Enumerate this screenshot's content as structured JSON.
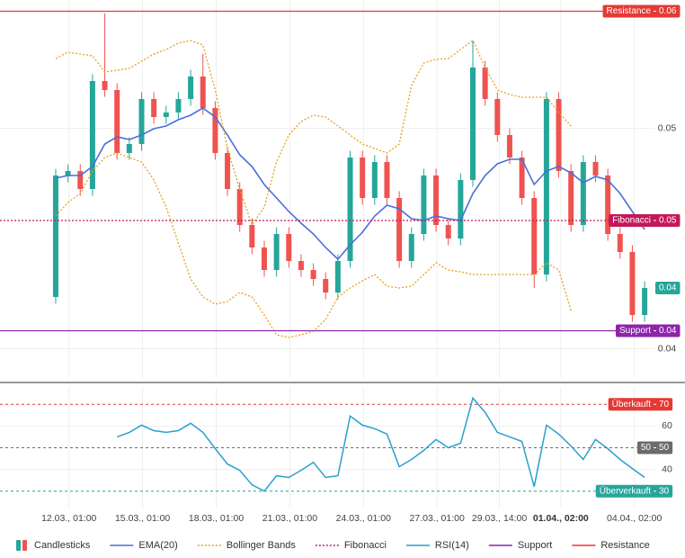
{
  "chart_data": [
    {
      "type": "candlestick",
      "name": "Candlesticks",
      "up_color": "#26a69a",
      "down_color": "#ef5350",
      "open": [
        0.0428,
        0.0482,
        0.0484,
        0.0476,
        0.0524,
        0.052,
        0.0492,
        0.0496,
        0.0516,
        0.0508,
        0.051,
        0.0516,
        0.0526,
        0.0512,
        0.0492,
        0.0476,
        0.046,
        0.045,
        0.044,
        0.0456,
        0.0444,
        0.044,
        0.0436,
        0.043,
        0.0444,
        0.049,
        0.0472,
        0.0488,
        0.0472,
        0.0444,
        0.0456,
        0.0482,
        0.046,
        0.0454,
        0.048,
        0.053,
        0.0516,
        0.05,
        0.049,
        0.0472,
        0.0438,
        0.0516,
        0.0484,
        0.046,
        0.0488,
        0.0482,
        0.0456,
        0.0448,
        0.042
      ],
      "high": [
        0.0485,
        0.0487,
        0.0487,
        0.0527,
        0.0554,
        0.0523,
        0.0499,
        0.0519,
        0.0519,
        0.0513,
        0.0519,
        0.0529,
        0.0536,
        0.0515,
        0.0495,
        0.0479,
        0.0463,
        0.0453,
        0.0459,
        0.0459,
        0.0447,
        0.0443,
        0.0439,
        0.0447,
        0.0493,
        0.0493,
        0.0491,
        0.0491,
        0.0475,
        0.0459,
        0.0485,
        0.0485,
        0.0463,
        0.0483,
        0.0542,
        0.0533,
        0.0519,
        0.0503,
        0.0493,
        0.0475,
        0.0519,
        0.0519,
        0.0487,
        0.0491,
        0.0491,
        0.0485,
        0.0459,
        0.0451,
        0.0435
      ],
      "low": [
        0.0425,
        0.0479,
        0.0473,
        0.0473,
        0.0517,
        0.0489,
        0.0489,
        0.0493,
        0.0505,
        0.0505,
        0.0507,
        0.0513,
        0.0509,
        0.0489,
        0.0473,
        0.0457,
        0.0447,
        0.0437,
        0.0437,
        0.0441,
        0.0437,
        0.0433,
        0.0427,
        0.0427,
        0.0441,
        0.0469,
        0.0469,
        0.0469,
        0.0441,
        0.0441,
        0.0453,
        0.0457,
        0.0451,
        0.0451,
        0.0477,
        0.0513,
        0.0497,
        0.0487,
        0.0469,
        0.0432,
        0.0435,
        0.0481,
        0.0457,
        0.0457,
        0.0479,
        0.0453,
        0.0445,
        0.0417,
        0.0417
      ],
      "close": [
        0.0482,
        0.0484,
        0.0476,
        0.0524,
        0.052,
        0.0492,
        0.0496,
        0.0516,
        0.0508,
        0.051,
        0.0516,
        0.0526,
        0.0512,
        0.0492,
        0.0476,
        0.046,
        0.045,
        0.044,
        0.0456,
        0.0444,
        0.044,
        0.0436,
        0.043,
        0.0444,
        0.049,
        0.0472,
        0.0488,
        0.0472,
        0.0444,
        0.0456,
        0.0482,
        0.046,
        0.0454,
        0.048,
        0.053,
        0.0516,
        0.05,
        0.049,
        0.0472,
        0.0438,
        0.0516,
        0.0484,
        0.046,
        0.0488,
        0.0482,
        0.0456,
        0.0448,
        0.042,
        0.0432
      ],
      "lines": [
        {
          "name": "EMA(20)",
          "color": "#4a6fd6",
          "style": "solid",
          "values": [
            0.04808,
            0.0482,
            0.0482,
            0.0486,
            0.0496,
            0.04992,
            0.0498,
            0.05,
            0.05028,
            0.0504,
            0.05068,
            0.05088,
            0.0512,
            0.0508,
            0.05,
            0.04912,
            0.0486,
            0.0478,
            0.0472,
            0.0466,
            0.04608,
            0.0456,
            0.045,
            0.04448,
            0.04512,
            0.04568,
            0.0464,
            0.04688,
            0.04672,
            0.04628,
            0.0462,
            0.0464,
            0.04628,
            0.0462,
            0.0474,
            0.0482,
            0.04872,
            0.04892,
            0.04892,
            0.0478,
            0.0484,
            0.0486,
            0.04832,
            0.04788,
            0.04816,
            0.048,
            0.0474,
            0.0466,
            0.0458
          ]
        },
        {
          "name": "Bollinger Bands",
          "color": "#e8a020",
          "style": "dotted",
          "upper": [
            0.0534,
            0.05368,
            0.0536,
            0.05352,
            0.0528,
            0.05288,
            0.05296,
            0.05328,
            0.0536,
            0.0538,
            0.05408,
            0.0542,
            0.054,
            0.052,
            0.0494,
            0.0476,
            0.046,
            0.0468,
            0.0488,
            0.05,
            0.0506,
            0.05088,
            0.0508,
            0.0504,
            0.05,
            0.0496,
            0.0494,
            0.0492,
            0.0496,
            0.0522,
            0.0532,
            0.05336,
            0.0534,
            0.0538,
            0.0542,
            0.053,
            0.052,
            0.0518,
            0.05168,
            0.05168,
            0.05168,
            0.051,
            0.0504,
            null,
            null,
            null,
            null,
            null,
            null
          ],
          "lower": [
            0.0464,
            0.047,
            0.0474,
            0.0484,
            0.049,
            0.0492,
            0.049,
            0.0488,
            0.048,
            0.0468,
            0.0452,
            0.0436,
            0.0428,
            0.04248,
            0.0426,
            0.043,
            0.0428,
            0.042,
            0.04112,
            0.041,
            0.04112,
            0.04128,
            0.0418,
            0.0428,
            0.0432,
            0.04352,
            0.0438,
            0.04328,
            0.0432,
            0.04328,
            0.0438,
            0.04432,
            0.044,
            0.04392,
            0.0438,
            0.0438,
            0.0438,
            0.0438,
            0.0438,
            0.0438,
            0.04432,
            0.044,
            0.0422,
            null,
            null,
            null,
            null,
            null,
            null
          ]
        }
      ],
      "levels": [
        {
          "name": "Fibonacci",
          "value": 0.0462,
          "label": "0.05",
          "color": "#c2185b",
          "style": "dotted"
        },
        {
          "name": "Support",
          "value": 0.0413,
          "label": "0.04",
          "color": "#8e24aa",
          "style": "solid"
        },
        {
          "name": "Resistance",
          "value": 0.0555,
          "label": "0.06",
          "color": "#e53935",
          "style": "solid"
        }
      ],
      "last_price": {
        "value": 0.0432,
        "label": "0.04"
      },
      "xlim": [
        -4.54,
        48.8
      ],
      "xticks": [
        {
          "value": 1.083,
          "label": "12.03., 01:00"
        },
        {
          "value": 7.083,
          "label": "15.03., 01:00"
        },
        {
          "value": 13.083,
          "label": "18.03., 01:00"
        },
        {
          "value": 19.083,
          "label": "21.03., 01:00"
        },
        {
          "value": 25.083,
          "label": "24.03., 01:00"
        },
        {
          "value": 31.083,
          "label": "27.03., 01:00"
        },
        {
          "value": 36.167,
          "label": "29.03., 14:00"
        },
        {
          "value": 41.167,
          "label": "01.04., 02:00",
          "bold": true
        },
        {
          "value": 47.167,
          "label": "04.04., 02:00"
        }
      ],
      "ylim": [
        0.0392,
        0.056
      ],
      "yticks": [
        {
          "value": 0.0503,
          "label": "0.05"
        },
        {
          "value": 0.0405,
          "label": "0.04"
        }
      ],
      "grid": true
    },
    {
      "type": "line",
      "series": [
        {
          "name": "RSI(14)",
          "color": "#2a9fd0",
          "values": [
            null,
            null,
            null,
            null,
            null,
            55,
            57.1,
            60.4,
            57.9,
            57.1,
            57.9,
            61.3,
            57.1,
            49.6,
            42.5,
            39.6,
            32.9,
            30,
            37.1,
            36.3,
            39.6,
            43.3,
            36.3,
            37.1,
            64.6,
            60.4,
            58.8,
            56.3,
            41.3,
            44.6,
            48.8,
            53.8,
            50,
            52.1,
            72.9,
            66.3,
            57.1,
            55,
            52.9,
            32.1,
            60.4,
            56.3,
            50.8,
            44.6,
            53.8,
            49.6,
            44.6,
            40.4,
            36.3
          ]
        }
      ],
      "levels": [
        {
          "name": "Überkauft",
          "value": 70,
          "color": "#e53935",
          "style": "dashed"
        },
        {
          "name": "50",
          "value": 50,
          "color": "#6b6b6b",
          "style": "dashed"
        },
        {
          "name": "Überverkauft",
          "value": 30,
          "color": "#26a69a",
          "style": "dashed"
        }
      ],
      "ylim": [
        22,
        78
      ],
      "yticks": [
        40,
        60
      ],
      "grid": true
    }
  ]
}
